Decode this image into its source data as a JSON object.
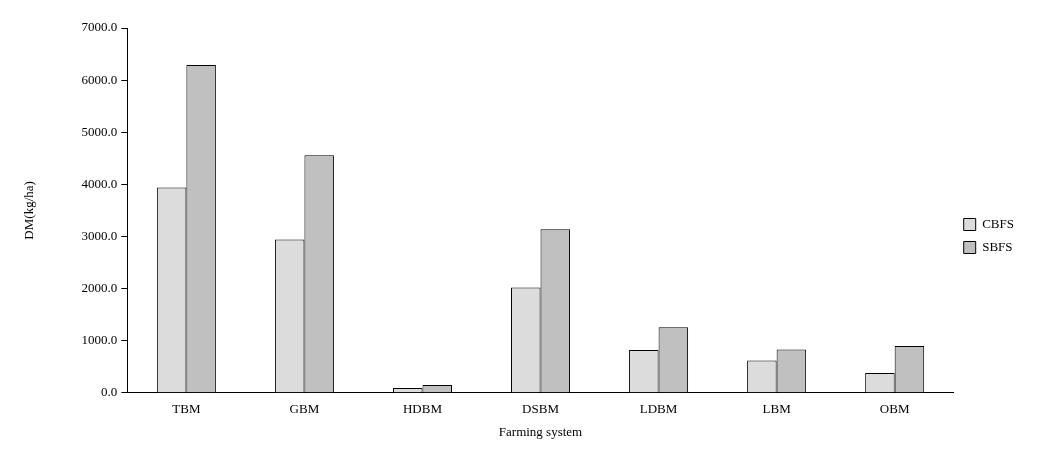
{
  "chart_data": {
    "type": "bar",
    "xlabel": "Farming system",
    "ylabel": "DM(kg/ha)",
    "categories": [
      "TBM",
      "GBM",
      "HDBM",
      "DSBM",
      "LDBM",
      "LBM",
      "OBM"
    ],
    "series": [
      {
        "name": "CBFS",
        "color": "#dcdcdc",
        "values": [
          3940,
          2940,
          90,
          2020,
          820,
          620,
          380
        ]
      },
      {
        "name": "SBFS",
        "color": "#c0c0c0",
        "values": [
          6290,
          4560,
          150,
          3140,
          1260,
          830,
          900
        ]
      }
    ],
    "ylim": [
      0,
      7000
    ],
    "yticks": [
      {
        "value": 0,
        "label": "0.0"
      },
      {
        "value": 1000,
        "label": "1000.0"
      },
      {
        "value": 2000,
        "label": "2000.0"
      },
      {
        "value": 3000,
        "label": "3000.0"
      },
      {
        "value": 4000,
        "label": "4000.0"
      },
      {
        "value": 5000,
        "label": "5000.0"
      },
      {
        "value": 6000,
        "label": "6000.0"
      },
      {
        "value": 7000,
        "label": "7000.0"
      }
    ],
    "grid": false,
    "legend": "right"
  }
}
